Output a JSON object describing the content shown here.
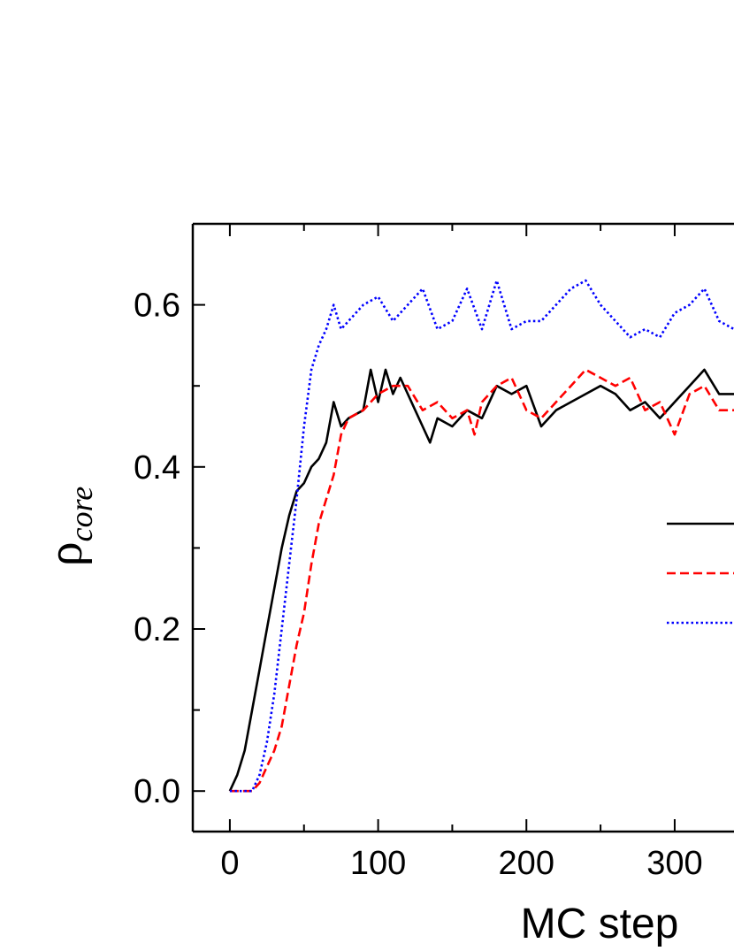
{
  "chart_data": {
    "type": "line",
    "title": "",
    "xlabel": "MC step",
    "ylabel": "ρcore",
    "ylabel_main": "ρ",
    "ylabel_sub": "core",
    "xlim": [
      -25,
      340
    ],
    "ylim": [
      -0.05,
      0.7
    ],
    "x_ticks": [
      0,
      100,
      200,
      300
    ],
    "x_tick_labels": [
      "0",
      "100",
      "200",
      "300"
    ],
    "y_ticks": [
      0.0,
      0.2,
      0.4,
      0.6
    ],
    "y_tick_labels": [
      "0.0",
      "0.2",
      "0.4",
      "0.6"
    ],
    "grid": false,
    "legend_position": "right (partially cropped)",
    "series": [
      {
        "style": "solid",
        "color": "#000000",
        "points": [
          [
            0,
            0.0
          ],
          [
            5,
            0.02
          ],
          [
            10,
            0.05
          ],
          [
            15,
            0.1
          ],
          [
            20,
            0.15
          ],
          [
            25,
            0.2
          ],
          [
            30,
            0.25
          ],
          [
            35,
            0.3
          ],
          [
            40,
            0.34
          ],
          [
            45,
            0.37
          ],
          [
            50,
            0.38
          ],
          [
            55,
            0.4
          ],
          [
            60,
            0.41
          ],
          [
            65,
            0.43
          ],
          [
            70,
            0.48
          ],
          [
            75,
            0.45
          ],
          [
            80,
            0.46
          ],
          [
            90,
            0.47
          ],
          [
            95,
            0.52
          ],
          [
            100,
            0.48
          ],
          [
            105,
            0.52
          ],
          [
            110,
            0.49
          ],
          [
            115,
            0.51
          ],
          [
            125,
            0.47
          ],
          [
            130,
            0.45
          ],
          [
            135,
            0.43
          ],
          [
            140,
            0.46
          ],
          [
            150,
            0.45
          ],
          [
            160,
            0.47
          ],
          [
            170,
            0.46
          ],
          [
            180,
            0.5
          ],
          [
            190,
            0.49
          ],
          [
            200,
            0.5
          ],
          [
            210,
            0.45
          ],
          [
            220,
            0.47
          ],
          [
            230,
            0.48
          ],
          [
            240,
            0.49
          ],
          [
            250,
            0.5
          ],
          [
            260,
            0.49
          ],
          [
            270,
            0.47
          ],
          [
            280,
            0.48
          ],
          [
            290,
            0.46
          ],
          [
            300,
            0.48
          ],
          [
            310,
            0.5
          ],
          [
            320,
            0.52
          ],
          [
            330,
            0.49
          ],
          [
            340,
            0.49
          ]
        ]
      },
      {
        "style": "dashed",
        "color": "#ff0000",
        "points": [
          [
            0,
            0.0
          ],
          [
            15,
            0.0
          ],
          [
            20,
            0.01
          ],
          [
            25,
            0.03
          ],
          [
            30,
            0.05
          ],
          [
            35,
            0.08
          ],
          [
            40,
            0.13
          ],
          [
            45,
            0.18
          ],
          [
            50,
            0.22
          ],
          [
            55,
            0.28
          ],
          [
            60,
            0.33
          ],
          [
            65,
            0.36
          ],
          [
            70,
            0.39
          ],
          [
            75,
            0.44
          ],
          [
            80,
            0.46
          ],
          [
            90,
            0.47
          ],
          [
            100,
            0.49
          ],
          [
            110,
            0.5
          ],
          [
            120,
            0.5
          ],
          [
            130,
            0.47
          ],
          [
            140,
            0.48
          ],
          [
            150,
            0.46
          ],
          [
            160,
            0.47
          ],
          [
            165,
            0.44
          ],
          [
            170,
            0.48
          ],
          [
            180,
            0.5
          ],
          [
            190,
            0.51
          ],
          [
            200,
            0.47
          ],
          [
            210,
            0.46
          ],
          [
            220,
            0.48
          ],
          [
            230,
            0.5
          ],
          [
            240,
            0.52
          ],
          [
            250,
            0.51
          ],
          [
            260,
            0.5
          ],
          [
            270,
            0.51
          ],
          [
            280,
            0.47
          ],
          [
            290,
            0.48
          ],
          [
            300,
            0.44
          ],
          [
            310,
            0.49
          ],
          [
            320,
            0.5
          ],
          [
            330,
            0.47
          ],
          [
            340,
            0.47
          ]
        ]
      },
      {
        "style": "dotted",
        "color": "#0000ff",
        "points": [
          [
            0,
            0.0
          ],
          [
            15,
            0.0
          ],
          [
            20,
            0.02
          ],
          [
            25,
            0.06
          ],
          [
            30,
            0.12
          ],
          [
            35,
            0.2
          ],
          [
            40,
            0.28
          ],
          [
            45,
            0.36
          ],
          [
            50,
            0.45
          ],
          [
            55,
            0.52
          ],
          [
            60,
            0.55
          ],
          [
            65,
            0.57
          ],
          [
            70,
            0.6
          ],
          [
            75,
            0.57
          ],
          [
            80,
            0.58
          ],
          [
            90,
            0.6
          ],
          [
            100,
            0.61
          ],
          [
            110,
            0.58
          ],
          [
            120,
            0.6
          ],
          [
            130,
            0.62
          ],
          [
            140,
            0.57
          ],
          [
            150,
            0.58
          ],
          [
            160,
            0.62
          ],
          [
            170,
            0.57
          ],
          [
            180,
            0.63
          ],
          [
            190,
            0.57
          ],
          [
            200,
            0.58
          ],
          [
            210,
            0.58
          ],
          [
            220,
            0.6
          ],
          [
            230,
            0.62
          ],
          [
            240,
            0.63
          ],
          [
            250,
            0.6
          ],
          [
            260,
            0.58
          ],
          [
            270,
            0.56
          ],
          [
            280,
            0.57
          ],
          [
            290,
            0.56
          ],
          [
            300,
            0.59
          ],
          [
            310,
            0.6
          ],
          [
            320,
            0.62
          ],
          [
            330,
            0.58
          ],
          [
            340,
            0.57
          ]
        ]
      }
    ]
  }
}
